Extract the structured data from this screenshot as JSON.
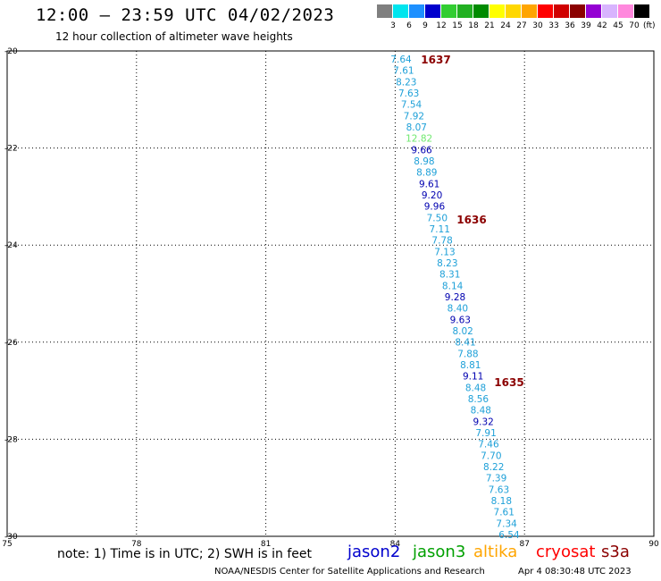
{
  "header": {
    "title": "12:00 — 23:59 UTC 04/02/2023",
    "subtitle": "12 hour collection of altimeter wave heights"
  },
  "color_scale": {
    "labels": [
      "3",
      "6",
      "9",
      "12",
      "15",
      "18",
      "21",
      "24",
      "27",
      "30",
      "33",
      "36",
      "39",
      "42",
      "45",
      "70"
    ],
    "unit": "(ft)",
    "colors": [
      "#7f7f7f",
      "#00e5ee",
      "#1e90ff",
      "#0000cd",
      "#32cd32",
      "#22b022",
      "#008b00",
      "#ffff00",
      "#ffd700",
      "#ffa500",
      "#ff0000",
      "#d00000",
      "#8b0000",
      "#9400d3",
      "#d8b4fe",
      "#ff88dd",
      "#000000"
    ]
  },
  "map": {
    "lat_labels": [
      "-20",
      "-22",
      "-24",
      "-26",
      "-28",
      "-30"
    ],
    "lon_labels": [
      "75",
      "78",
      "81",
      "84",
      "87",
      "90"
    ],
    "lat_range": [
      -30,
      -20
    ],
    "lon_range": [
      75,
      90
    ],
    "grid": true,
    "track_labels": [
      {
        "text": "1637",
        "color": "#8b0000"
      },
      {
        "text": "1636",
        "color": "#8b0000"
      },
      {
        "text": "1635",
        "color": "#8b0000"
      }
    ],
    "readings": [
      {
        "value": "7.64",
        "color": "#1ea0d8"
      },
      {
        "value": "7.61",
        "color": "#1ea0d8"
      },
      {
        "value": "8.23",
        "color": "#1ea0d8"
      },
      {
        "value": "7.63",
        "color": "#1ea0d8"
      },
      {
        "value": "7.54",
        "color": "#1ea0d8"
      },
      {
        "value": "7.92",
        "color": "#1ea0d8"
      },
      {
        "value": "8.07",
        "color": "#1ea0d8"
      },
      {
        "value": "12.82",
        "color": "#6fe86f"
      },
      {
        "value": "9.66",
        "color": "#0000b0"
      },
      {
        "value": "8.98",
        "color": "#1ea0d8"
      },
      {
        "value": "8.89",
        "color": "#1ea0d8"
      },
      {
        "value": "9.61",
        "color": "#0000b0"
      },
      {
        "value": "9.20",
        "color": "#0000b0"
      },
      {
        "value": "9.96",
        "color": "#0000b0"
      },
      {
        "value": "7.50",
        "color": "#1ea0d8"
      },
      {
        "value": "7.11",
        "color": "#1ea0d8"
      },
      {
        "value": "7.78",
        "color": "#1ea0d8"
      },
      {
        "value": "7.13",
        "color": "#1ea0d8"
      },
      {
        "value": "8.23",
        "color": "#1ea0d8"
      },
      {
        "value": "8.31",
        "color": "#1ea0d8"
      },
      {
        "value": "8.14",
        "color": "#1ea0d8"
      },
      {
        "value": "9.28",
        "color": "#0000b0"
      },
      {
        "value": "8.40",
        "color": "#1ea0d8"
      },
      {
        "value": "9.63",
        "color": "#0000b0"
      },
      {
        "value": "8.02",
        "color": "#1ea0d8"
      },
      {
        "value": "8.41",
        "color": "#1ea0d8"
      },
      {
        "value": "7.88",
        "color": "#1ea0d8"
      },
      {
        "value": "8.81",
        "color": "#1ea0d8"
      },
      {
        "value": "9.11",
        "color": "#0000b0"
      },
      {
        "value": "8.48",
        "color": "#1ea0d8"
      },
      {
        "value": "8.56",
        "color": "#1ea0d8"
      },
      {
        "value": "8.48",
        "color": "#1ea0d8"
      },
      {
        "value": "9.32",
        "color": "#0000b0"
      },
      {
        "value": "7.91",
        "color": "#1ea0d8"
      },
      {
        "value": "7.46",
        "color": "#1ea0d8"
      },
      {
        "value": "7.70",
        "color": "#1ea0d8"
      },
      {
        "value": "8.22",
        "color": "#1ea0d8"
      },
      {
        "value": "7.39",
        "color": "#1ea0d8"
      },
      {
        "value": "7.63",
        "color": "#1ea0d8"
      },
      {
        "value": "8.18",
        "color": "#1ea0d8"
      },
      {
        "value": "7.61",
        "color": "#1ea0d8"
      },
      {
        "value": "7.34",
        "color": "#1ea0d8"
      },
      {
        "value": "6.54",
        "color": "#1ea0d8"
      }
    ]
  },
  "note": "note: 1) Time is in UTC; 2) SWH is in feet",
  "satellites": [
    {
      "name": "jason2",
      "color": "#0000cd"
    },
    {
      "name": "jason3",
      "color": "#00a000"
    },
    {
      "name": "altika",
      "color": "#ffa500"
    },
    {
      "name": "cryosat",
      "color": "#ff0000"
    },
    {
      "name": "s3a",
      "color": "#8b0000"
    }
  ],
  "footer": {
    "credit": "NOAA/NESDIS Center for Satellite Applications and Research",
    "generated": "Apr  4 08:30:48 UTC 2023"
  }
}
